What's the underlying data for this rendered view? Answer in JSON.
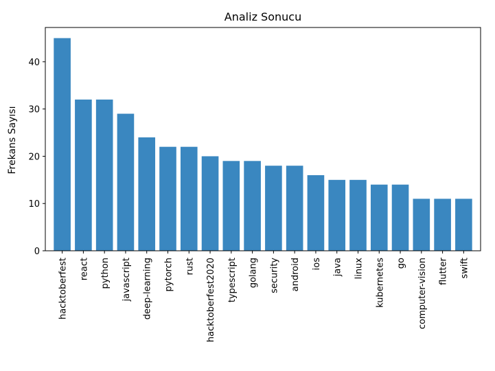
{
  "chart_data": {
    "type": "bar",
    "title": "Analiz Sonucu",
    "xlabel": "",
    "ylabel": "Frekans Sayısı",
    "categories": [
      "hacktoberfest",
      "react",
      "python",
      "javascript",
      "deep-learning",
      "pytorch",
      "rust",
      "hacktoberfest2020",
      "typescript",
      "golang",
      "security",
      "android",
      "ios",
      "java",
      "linux",
      "kubernetes",
      "go",
      "computer-vision",
      "flutter",
      "swift"
    ],
    "values": [
      45,
      32,
      32,
      29,
      24,
      22,
      22,
      20,
      19,
      19,
      18,
      18,
      16,
      15,
      15,
      14,
      14,
      11,
      11,
      11
    ],
    "ylim": [
      0,
      47.25
    ],
    "yticks": [
      0,
      10,
      20,
      30,
      40
    ],
    "bar_color": "#3a87c0",
    "grid": false,
    "legend": "none"
  }
}
